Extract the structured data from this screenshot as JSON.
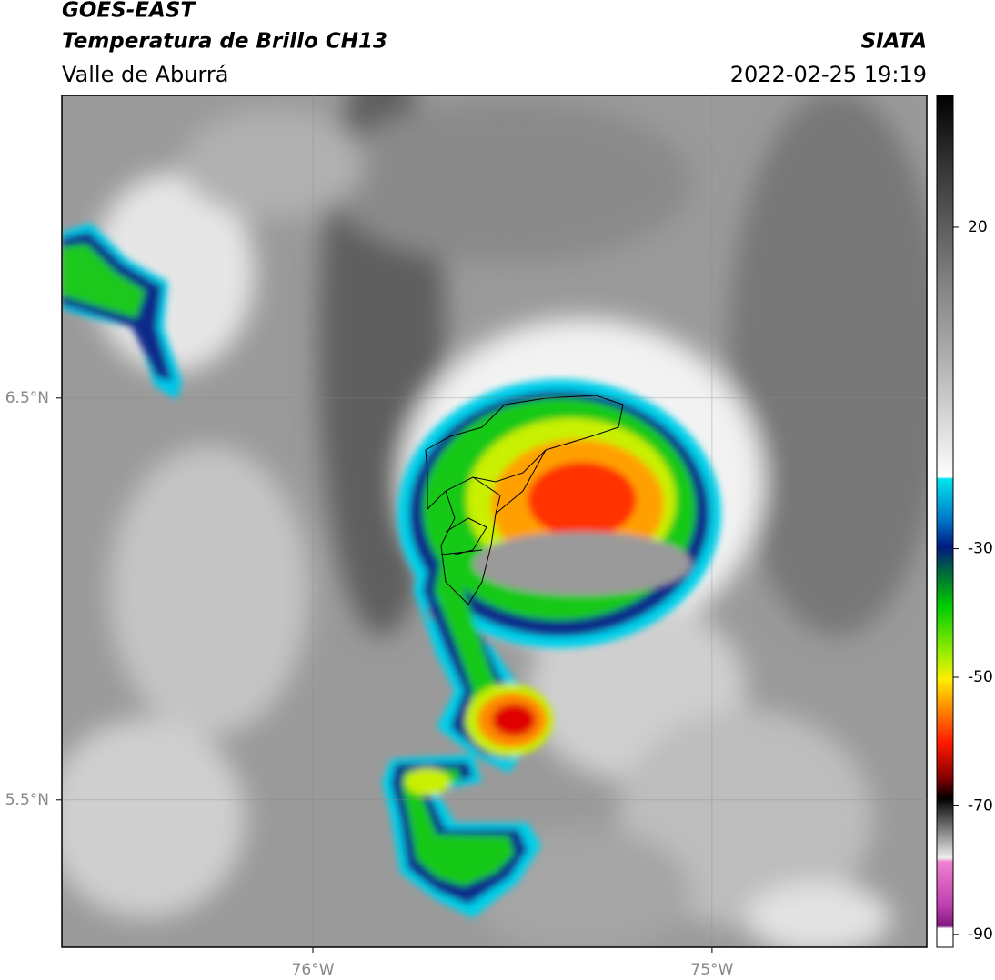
{
  "chart_data": {
    "type": "map",
    "title": "GOES-EAST",
    "subtitle": "Temperatura de Brillo CH13",
    "region": "Valle de Aburrá",
    "source": "SIATA",
    "datetime": "2022-02-25 19:19",
    "xlim": [
      -76.629,
      -74.462
    ],
    "ylim": [
      5.133,
      7.253
    ],
    "xticks": [
      {
        "value": -76,
        "label": "76°W"
      },
      {
        "value": -75,
        "label": "75°W"
      }
    ],
    "yticks": [
      {
        "value": 6.5,
        "label": "6.5°N"
      },
      {
        "value": 5.5,
        "label": "5.5°N"
      }
    ],
    "grid": true,
    "colorbar": {
      "lim": [
        -92,
        40.5
      ],
      "ticks": [
        20,
        -30,
        -50,
        -70,
        -90
      ]
    }
  }
}
